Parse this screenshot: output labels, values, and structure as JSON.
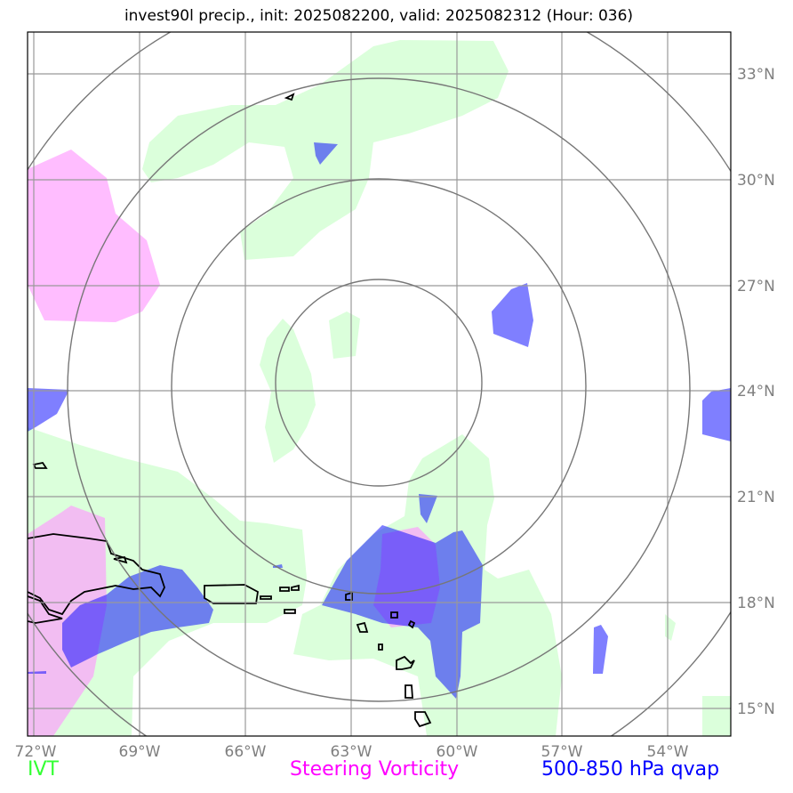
{
  "title": "invest90l precip., init: 2025082200, valid: 2025082312 (Hour: 036)",
  "lat_labels": [
    "33°N",
    "30°N",
    "27°N",
    "24°N",
    "21°N",
    "18°N",
    "15°N"
  ],
  "lon_labels": [
    "72°W",
    "69°W",
    "66°W",
    "63°W",
    "60°W",
    "57°W",
    "54°W"
  ],
  "legend": {
    "ivt": "IVT",
    "vorticity": "Steering Vorticity",
    "qvap": "500-850 hPa qvap"
  },
  "colors": {
    "ivt": "#ccffcc",
    "vorticity": "#ff99ff",
    "qvap": "#0000ff",
    "legend_ivt": "#33ff33",
    "legend_vorticity": "#ff00ff",
    "legend_qvap": "#0000ff"
  }
}
